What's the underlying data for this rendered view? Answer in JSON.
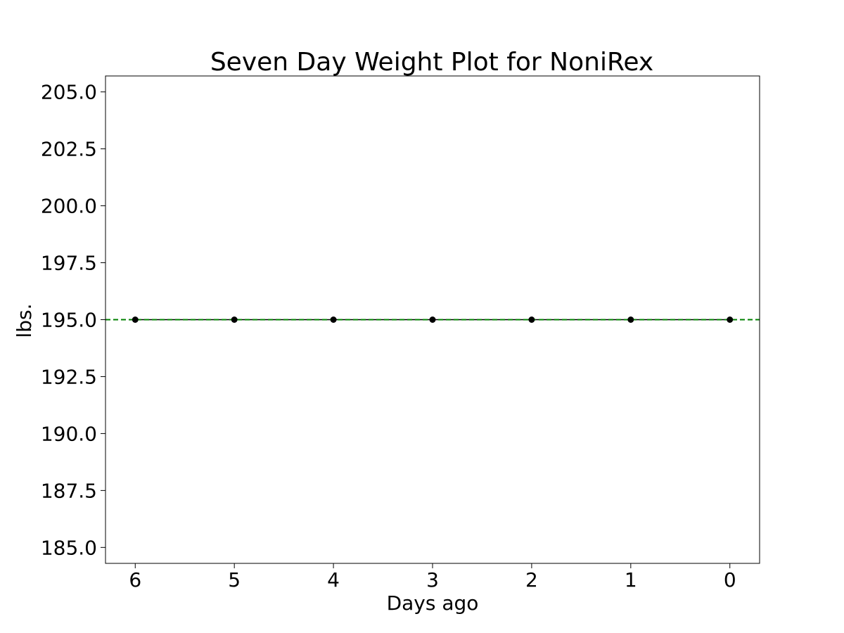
{
  "chart_data": {
    "type": "line",
    "title": "Seven Day Weight Plot for NoniRex",
    "xlabel": "Days ago",
    "ylabel": "lbs.",
    "x": [
      6,
      5,
      4,
      3,
      2,
      1,
      0
    ],
    "x_inverted": true,
    "xlim": [
      6.3,
      -0.3
    ],
    "ylim": [
      184.3,
      205.7
    ],
    "x_ticks": [
      6,
      5,
      4,
      3,
      2,
      1,
      0
    ],
    "x_tick_labels": [
      "6",
      "5",
      "4",
      "3",
      "2",
      "1",
      "0"
    ],
    "y_ticks": [
      185.0,
      187.5,
      190.0,
      192.5,
      195.0,
      197.5,
      200.0,
      202.5,
      205.0
    ],
    "y_tick_labels": [
      "185.0",
      "187.5",
      "190.0",
      "192.5",
      "195.0",
      "197.5",
      "200.0",
      "202.5",
      "205.0"
    ],
    "series": [
      {
        "values": [
          195.0,
          195.0,
          195.0,
          195.0,
          195.0,
          195.0,
          195.0
        ],
        "color": "#000000",
        "marker": "circle"
      }
    ],
    "reference_line": {
      "value": 195.0,
      "orientation": "horizontal",
      "style": "dashed",
      "color": "#008000"
    },
    "grid": false,
    "legend": "none"
  }
}
